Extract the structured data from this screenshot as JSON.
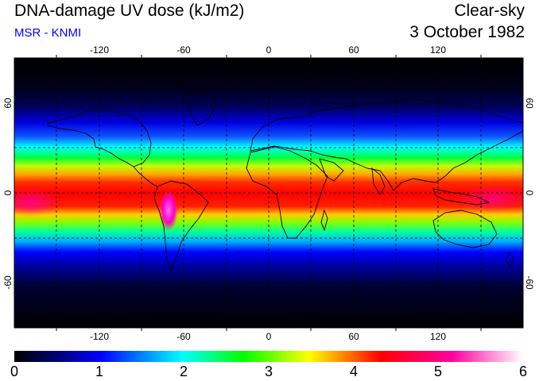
{
  "header": {
    "title": "DNA-damage UV dose (kJ/m2)",
    "subtitle": "MSR - KNMI",
    "subtitle_color": "#0000ff",
    "condition": "Clear-sky",
    "date": "3 October 1982"
  },
  "map": {
    "projection": "equirectangular",
    "lon_range": [
      -180,
      180
    ],
    "lat_range": [
      -90,
      90
    ],
    "lon_ticks": [
      "-120",
      "-60",
      "0",
      "60",
      "120"
    ],
    "lat_ticks": [
      "60",
      "0",
      "-60"
    ],
    "grid_lines": "dashed every 30 degrees",
    "coastlines": true,
    "field": "daily UV dose, highest in the tropics, peak over the central Andes"
  },
  "colorbar": {
    "min": 0,
    "max": 6,
    "labels": [
      "0",
      "1",
      "2",
      "3",
      "4",
      "5",
      "6"
    ],
    "colors": [
      "#000000",
      "#000060",
      "#0000ff",
      "#00ffff",
      "#00ff00",
      "#ffff00",
      "#ff0000",
      "#ff00a0",
      "#ffffff"
    ]
  }
}
